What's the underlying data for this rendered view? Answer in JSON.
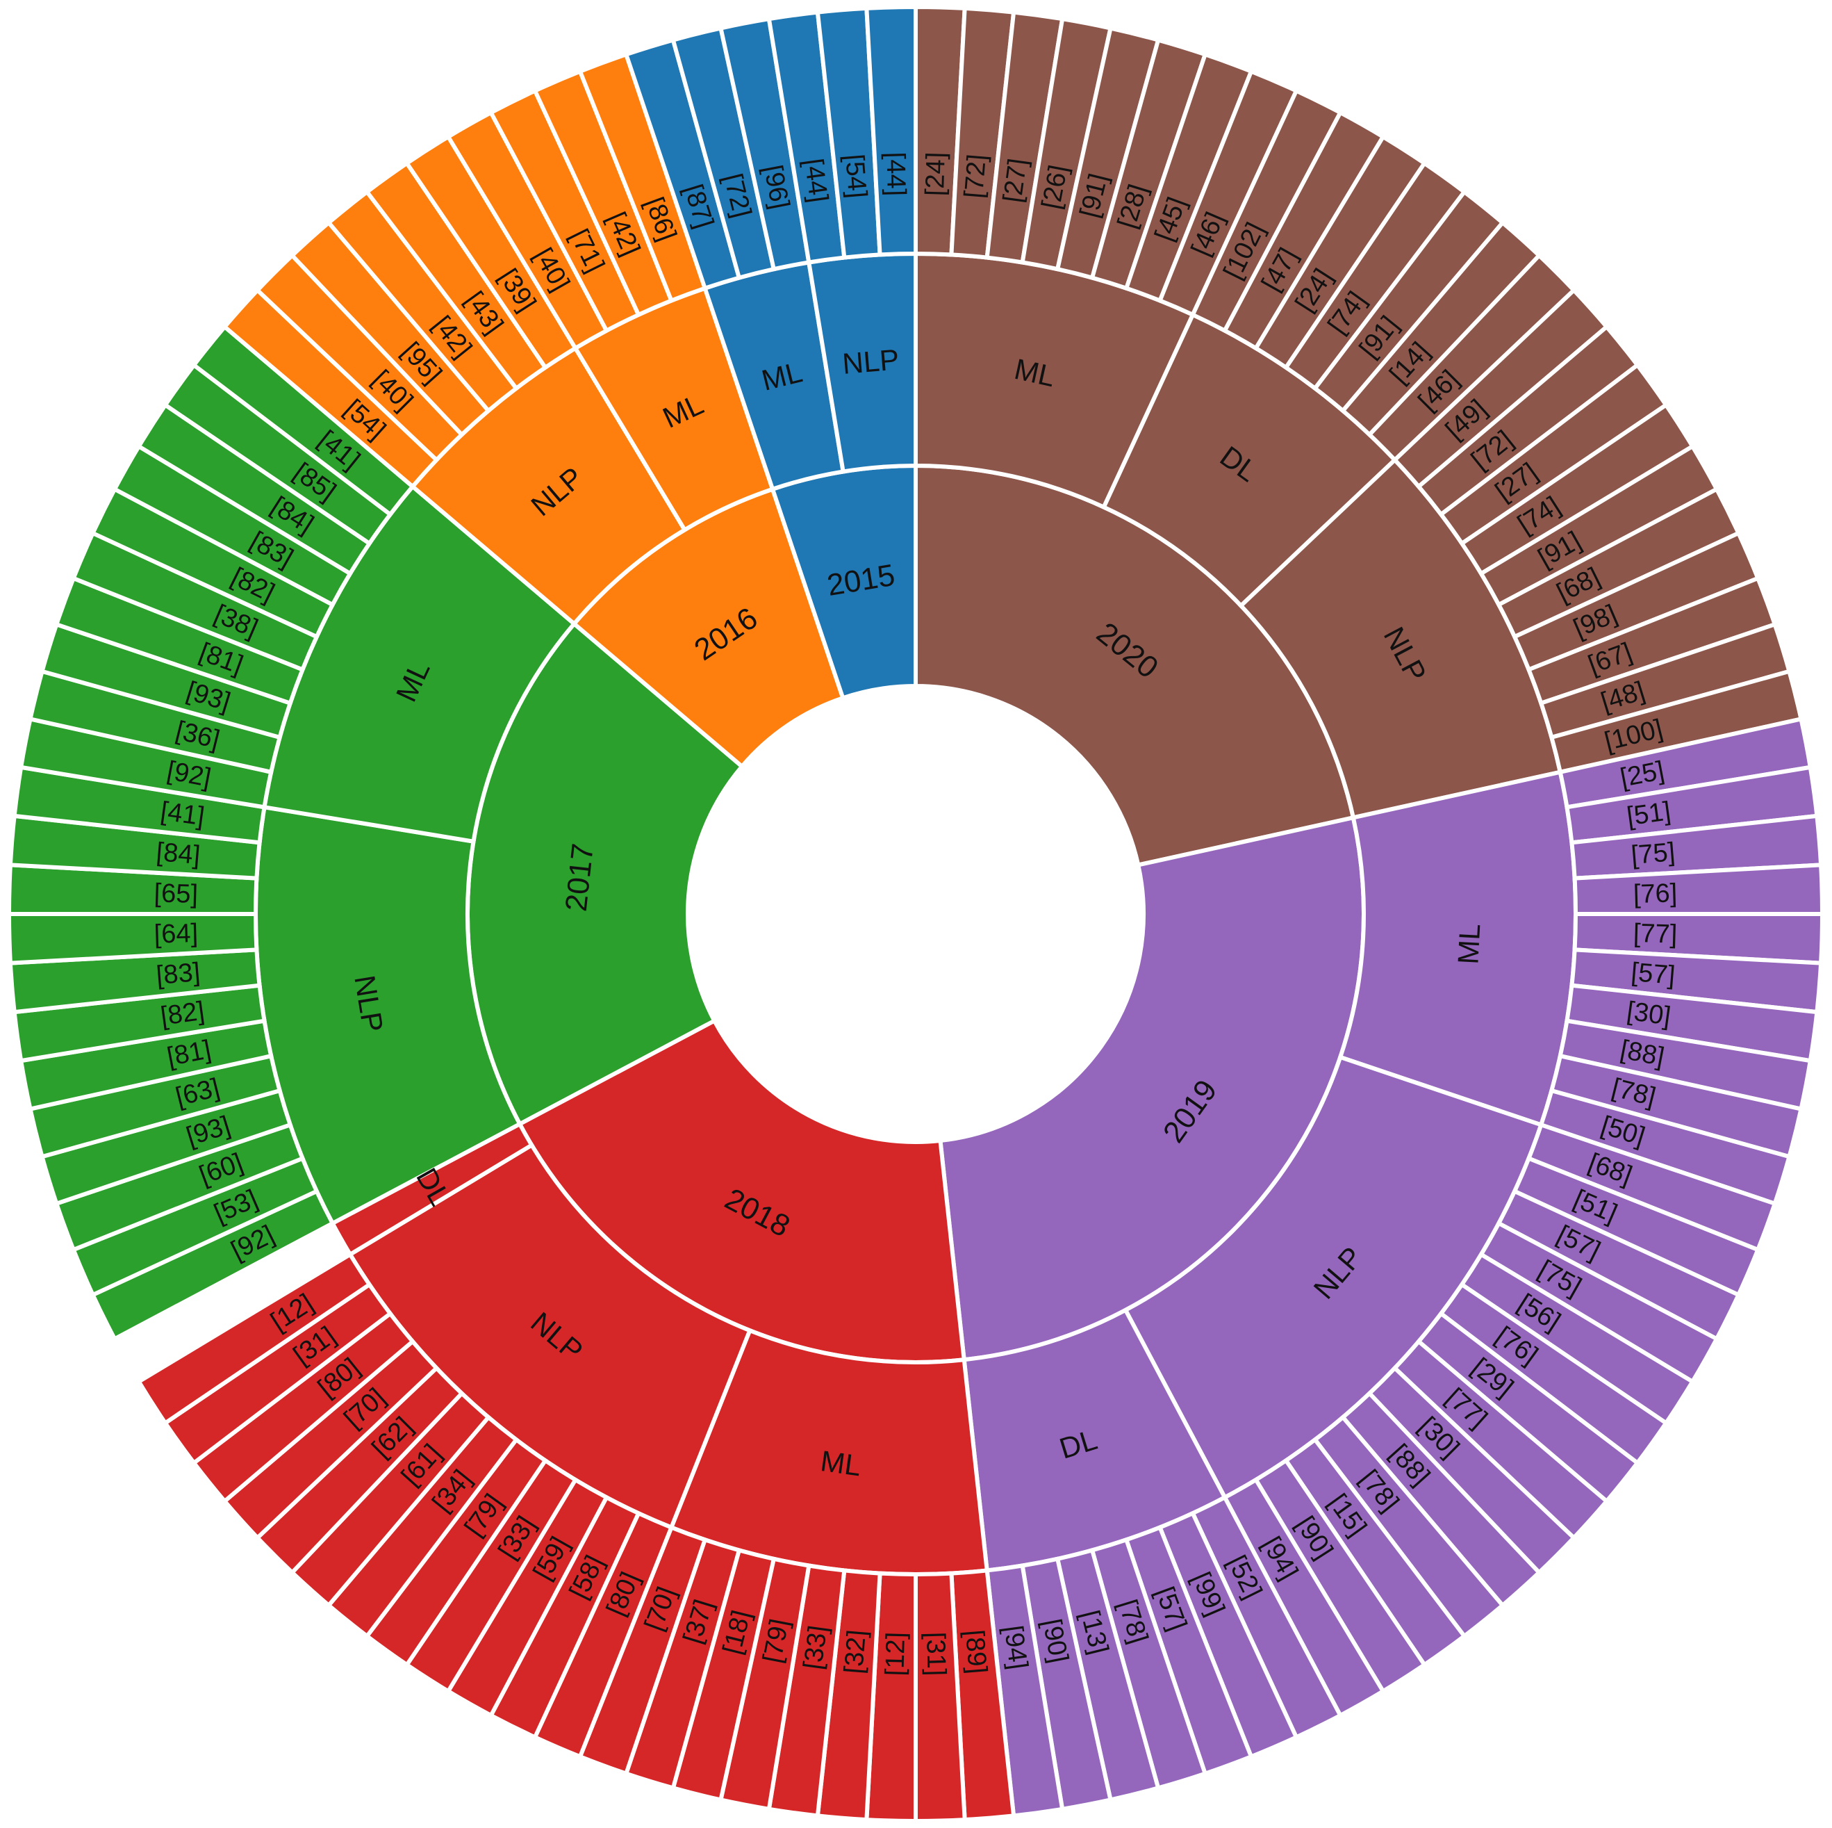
{
  "chart_data": {
    "type": "sunburst",
    "title": "",
    "colors": {
      "2015": "#1f77b4",
      "2016": "#ff7f0e",
      "2017": "#2ca02c",
      "2018": "#d62728",
      "2019": "#9467bd",
      "2020": "#8c564b",
      "separator": "#ffffff"
    },
    "hierarchy": [
      {
        "name": "2020",
        "children": [
          {
            "name": "ML",
            "refs": [
              "[24]",
              "[72]",
              "[27]",
              "[26]",
              "[91]",
              "[28]",
              "[45]",
              "[46]"
            ]
          },
          {
            "name": "DL",
            "refs": [
              "[102]",
              "[47]",
              "[24]",
              "[74]",
              "[91]",
              "[14]",
              "[46]"
            ]
          },
          {
            "name": "NLP",
            "refs": [
              "[49]",
              "[72]",
              "[27]",
              "[74]",
              "[91]",
              "[68]",
              "[98]",
              "[67]",
              "[48]",
              "[100]"
            ]
          }
        ]
      },
      {
        "name": "2019",
        "children": [
          {
            "name": "ML",
            "refs": [
              "[25]",
              "[51]",
              "[75]",
              "[76]",
              "[77]",
              "[57]",
              "[30]",
              "[88]",
              "[78]",
              "[50]"
            ]
          },
          {
            "name": "NLP",
            "refs": [
              "[68]",
              "[51]",
              "[57]",
              "[75]",
              "[56]",
              "[76]",
              "[29]",
              "[77]",
              "[30]",
              "[88]",
              "[78]",
              "[15]",
              "[90]",
              "[94]"
            ]
          },
          {
            "name": "DL",
            "refs": [
              "[52]",
              "[99]",
              "[57]",
              "[78]",
              "[13]",
              "[90]",
              "[94]"
            ]
          }
        ]
      },
      {
        "name": "2018",
        "children": [
          {
            "name": "ML",
            "refs": [
              "[89]",
              "[31]",
              "[12]",
              "[32]",
              "[33]",
              "[79]",
              "[18]",
              "[37]",
              "[70]"
            ]
          },
          {
            "name": "NLP",
            "refs": [
              "[80]",
              "[58]",
              "[59]",
              "[33]",
              "[79]",
              "[34]",
              "[61]",
              "[62]",
              "[70]",
              "[80]",
              "[31]",
              "[12]"
            ]
          },
          {
            "name": "DL",
            "refs": []
          }
        ]
      },
      {
        "name": "2017",
        "children": [
          {
            "name": "NLP",
            "refs": [
              "[92]",
              "[53]",
              "[60]",
              "[93]",
              "[63]",
              "[81]",
              "[82]",
              "[83]",
              "[64]",
              "[65]",
              "[84]",
              "[41]"
            ]
          },
          {
            "name": "ML",
            "refs": [
              "[92]",
              "[36]",
              "[93]",
              "[81]",
              "[38]",
              "[82]",
              "[83]",
              "[84]",
              "[85]",
              "[41]"
            ]
          }
        ]
      },
      {
        "name": "2016",
        "children": [
          {
            "name": "NLP",
            "refs": [
              "[54]",
              "[40]",
              "[95]",
              "[42]",
              "[43]",
              "[39]"
            ]
          },
          {
            "name": "ML",
            "refs": [
              "[40]",
              "[71]",
              "[42]",
              "[86]"
            ]
          }
        ]
      },
      {
        "name": "2015",
        "children": [
          {
            "name": "ML",
            "refs": [
              "[87]",
              "[72]",
              "[96]"
            ]
          },
          {
            "name": "NLP",
            "refs": [
              "[44]",
              "[54]",
              "[44]"
            ]
          }
        ]
      }
    ]
  }
}
